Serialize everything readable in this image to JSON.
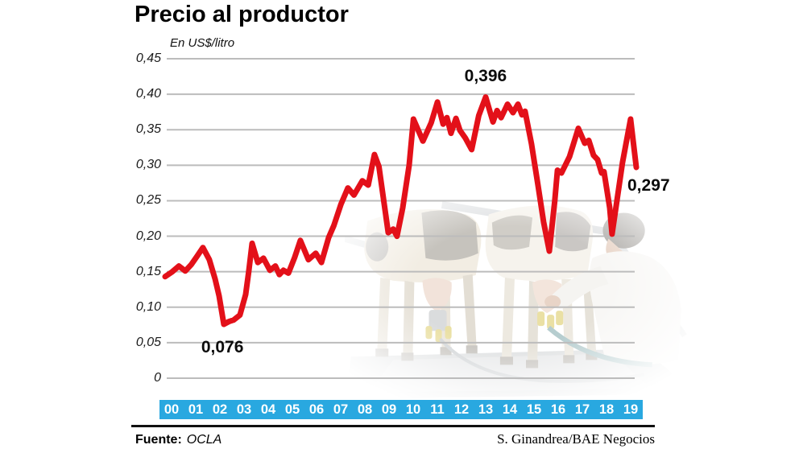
{
  "page": {
    "title": "Precio al productor",
    "subtitle": "En US$/litro"
  },
  "footer": {
    "source_label": "Fuente:",
    "source_value": "OCLA",
    "credit": "S. Ginandrea/BAE Negocios"
  },
  "colors": {
    "line": "#e31019",
    "band": "#29a8e0",
    "grid": "#bcbcbc",
    "band_text": "#ffffff",
    "annotation_text": "#0c0c0c"
  },
  "chart_data": {
    "type": "line",
    "title": "Precio al productor",
    "ylabel": "En US$/litro",
    "grid": true,
    "legend": "none",
    "ylim": [
      0,
      0.45
    ],
    "x_range_years": [
      0,
      19.83
    ],
    "y_tick_values": [
      0.45,
      0.4,
      0.35,
      0.3,
      0.25,
      0.2,
      0.15,
      0.1,
      0.05,
      0
    ],
    "y_tick_labels": [
      "0,45",
      "0,40",
      "0,35",
      "0,30",
      "0,25",
      "0,20",
      "0,15",
      "0,10",
      "0,05",
      "0"
    ],
    "x_tick_labels": [
      "00",
      "01",
      "02",
      "03",
      "04",
      "05",
      "06",
      "07",
      "08",
      "09",
      "10",
      "11",
      "12",
      "13",
      "14",
      "15",
      "16",
      "17",
      "18",
      "19"
    ],
    "series": [
      {
        "name": "Precio al productor (US$/litro)",
        "color": "#e31019",
        "points": [
          [
            0.0,
            0.143
          ],
          [
            0.3,
            0.15
          ],
          [
            0.58,
            0.158
          ],
          [
            0.85,
            0.151
          ],
          [
            1.1,
            0.16
          ],
          [
            1.35,
            0.172
          ],
          [
            1.59,
            0.184
          ],
          [
            1.86,
            0.167
          ],
          [
            2.1,
            0.14
          ],
          [
            2.27,
            0.116
          ],
          [
            2.47,
            0.076
          ],
          [
            2.7,
            0.08
          ],
          [
            2.88,
            0.082
          ],
          [
            3.15,
            0.089
          ],
          [
            3.39,
            0.118
          ],
          [
            3.52,
            0.15
          ],
          [
            3.66,
            0.19
          ],
          [
            3.9,
            0.163
          ],
          [
            4.14,
            0.169
          ],
          [
            4.41,
            0.152
          ],
          [
            4.64,
            0.158
          ],
          [
            4.81,
            0.146
          ],
          [
            4.98,
            0.152
          ],
          [
            5.19,
            0.148
          ],
          [
            5.45,
            0.17
          ],
          [
            5.69,
            0.194
          ],
          [
            6.03,
            0.167
          ],
          [
            6.34,
            0.176
          ],
          [
            6.58,
            0.163
          ],
          [
            6.88,
            0.198
          ],
          [
            7.1,
            0.215
          ],
          [
            7.4,
            0.245
          ],
          [
            7.69,
            0.268
          ],
          [
            7.95,
            0.258
          ],
          [
            8.3,
            0.278
          ],
          [
            8.55,
            0.272
          ],
          [
            8.81,
            0.315
          ],
          [
            9.0,
            0.298
          ],
          [
            9.39,
            0.205
          ],
          [
            9.6,
            0.21
          ],
          [
            9.76,
            0.2
          ],
          [
            10.0,
            0.24
          ],
          [
            10.27,
            0.3
          ],
          [
            10.45,
            0.365
          ],
          [
            10.85,
            0.334
          ],
          [
            11.2,
            0.36
          ],
          [
            11.46,
            0.389
          ],
          [
            11.7,
            0.358
          ],
          [
            11.86,
            0.367
          ],
          [
            12.03,
            0.345
          ],
          [
            12.24,
            0.366
          ],
          [
            12.41,
            0.349
          ],
          [
            12.64,
            0.338
          ],
          [
            12.9,
            0.322
          ],
          [
            13.2,
            0.37
          ],
          [
            13.49,
            0.396
          ],
          [
            13.8,
            0.361
          ],
          [
            13.97,
            0.377
          ],
          [
            14.14,
            0.367
          ],
          [
            14.41,
            0.386
          ],
          [
            14.64,
            0.374
          ],
          [
            14.85,
            0.386
          ],
          [
            15.02,
            0.371
          ],
          [
            15.15,
            0.376
          ],
          [
            15.42,
            0.33
          ],
          [
            15.7,
            0.27
          ],
          [
            15.93,
            0.22
          ],
          [
            16.17,
            0.179
          ],
          [
            16.4,
            0.25
          ],
          [
            16.51,
            0.293
          ],
          [
            16.68,
            0.289
          ],
          [
            17.02,
            0.312
          ],
          [
            17.39,
            0.352
          ],
          [
            17.66,
            0.331
          ],
          [
            17.83,
            0.335
          ],
          [
            18.03,
            0.314
          ],
          [
            18.2,
            0.308
          ],
          [
            18.37,
            0.289
          ],
          [
            18.47,
            0.291
          ],
          [
            18.58,
            0.268
          ],
          [
            18.71,
            0.24
          ],
          [
            18.81,
            0.203
          ],
          [
            19.25,
            0.304
          ],
          [
            19.59,
            0.365
          ],
          [
            19.83,
            0.297
          ]
        ]
      }
    ],
    "annotations": [
      {
        "text": "0,396",
        "t": 13.49,
        "v": 0.396,
        "placement": "above"
      },
      {
        "text": "0,297",
        "t": 19.83,
        "v": 0.297,
        "placement": "right"
      },
      {
        "text": "0,076",
        "t": 2.47,
        "v": 0.076,
        "placement": "below"
      }
    ]
  }
}
